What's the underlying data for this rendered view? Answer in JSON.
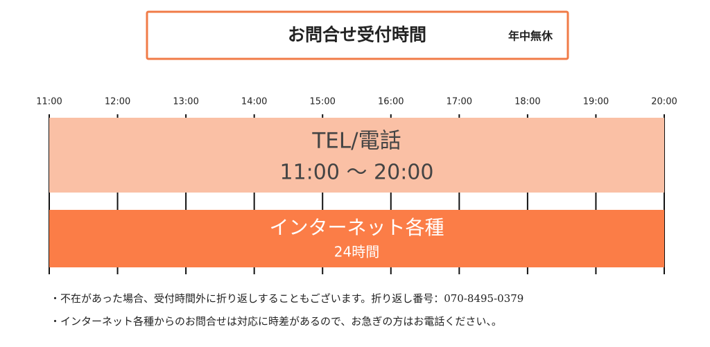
{
  "header": {
    "title": "お問合せ受付時間",
    "note": "年中無休"
  },
  "timeline": {
    "times": [
      "11:00",
      "12:00",
      "13:00",
      "14:00",
      "15:00",
      "16:00",
      "17:00",
      "18:00",
      "19:00",
      "20:00"
    ],
    "rows": [
      {
        "label": "TEL/電話",
        "hours": "11:00 〜 20:00"
      },
      {
        "label": "インターネット各種",
        "hours": "24時間"
      }
    ]
  },
  "notes": [
    "・不在があった場合、受付時間外に折り返しすることもございます。折り返し番号：070-8495-0379",
    "・インターネット各種からのお問合せは対応に時差があるので、お急ぎの方はお電話ください、。"
  ]
}
